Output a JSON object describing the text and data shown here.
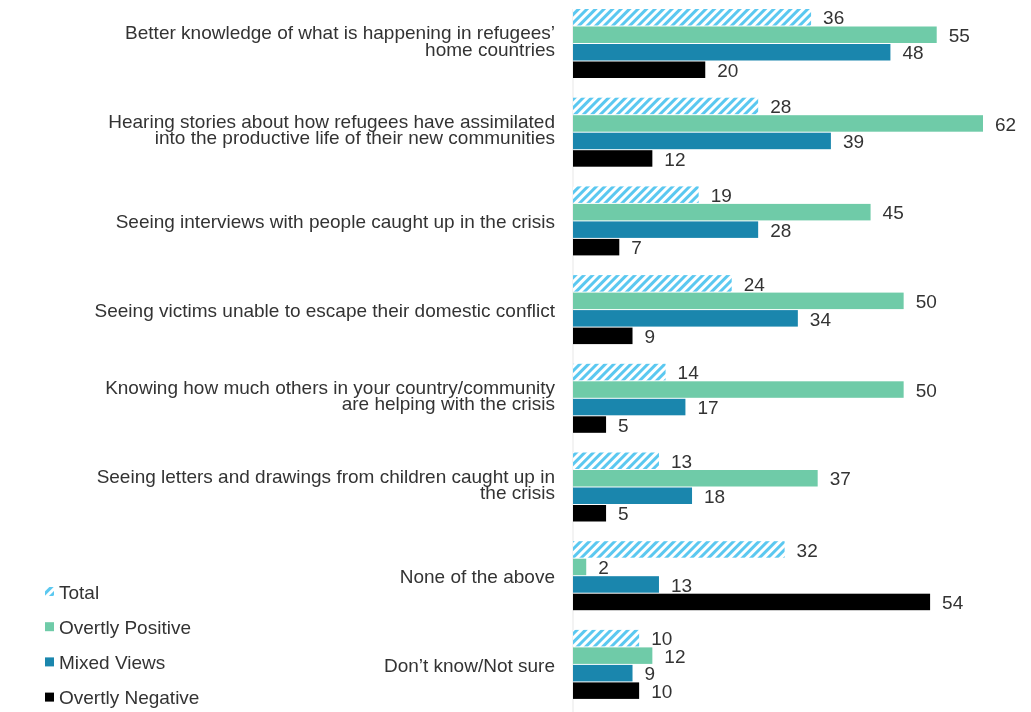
{
  "chart_data": {
    "type": "bar",
    "orientation": "horizontal",
    "data_labels": true,
    "legend": "bottom left",
    "categories": [
      "Better knowledge of what is happening in refugees’ home countries",
      "Hearing stories about how refugees have assimilated into the productive life of their new communities",
      "Seeing interviews with people caught up in the crisis",
      "Seeing victims unable to escape their domestic conflict",
      "Knowing how much others in your country/community are helping with the crisis",
      "Seeing letters and drawings from children caught up in the crisis",
      "None of the above",
      "Don’t know/Not sure"
    ],
    "series": [
      {
        "name": "Total",
        "color": "#5bc8f0",
        "values": [
          36,
          28,
          19,
          24,
          14,
          13,
          32,
          10
        ]
      },
      {
        "name": "Overtly Positive",
        "color": "#6fcba8",
        "values": [
          55,
          62,
          45,
          50,
          50,
          37,
          2,
          12
        ]
      },
      {
        "name": "Mixed Views",
        "color": "#1a86ad",
        "values": [
          48,
          39,
          28,
          34,
          17,
          18,
          13,
          9
        ]
      },
      {
        "name": "Overtly Negative",
        "color": "#000000",
        "values": [
          20,
          12,
          7,
          9,
          5,
          5,
          54,
          10
        ]
      }
    ]
  }
}
